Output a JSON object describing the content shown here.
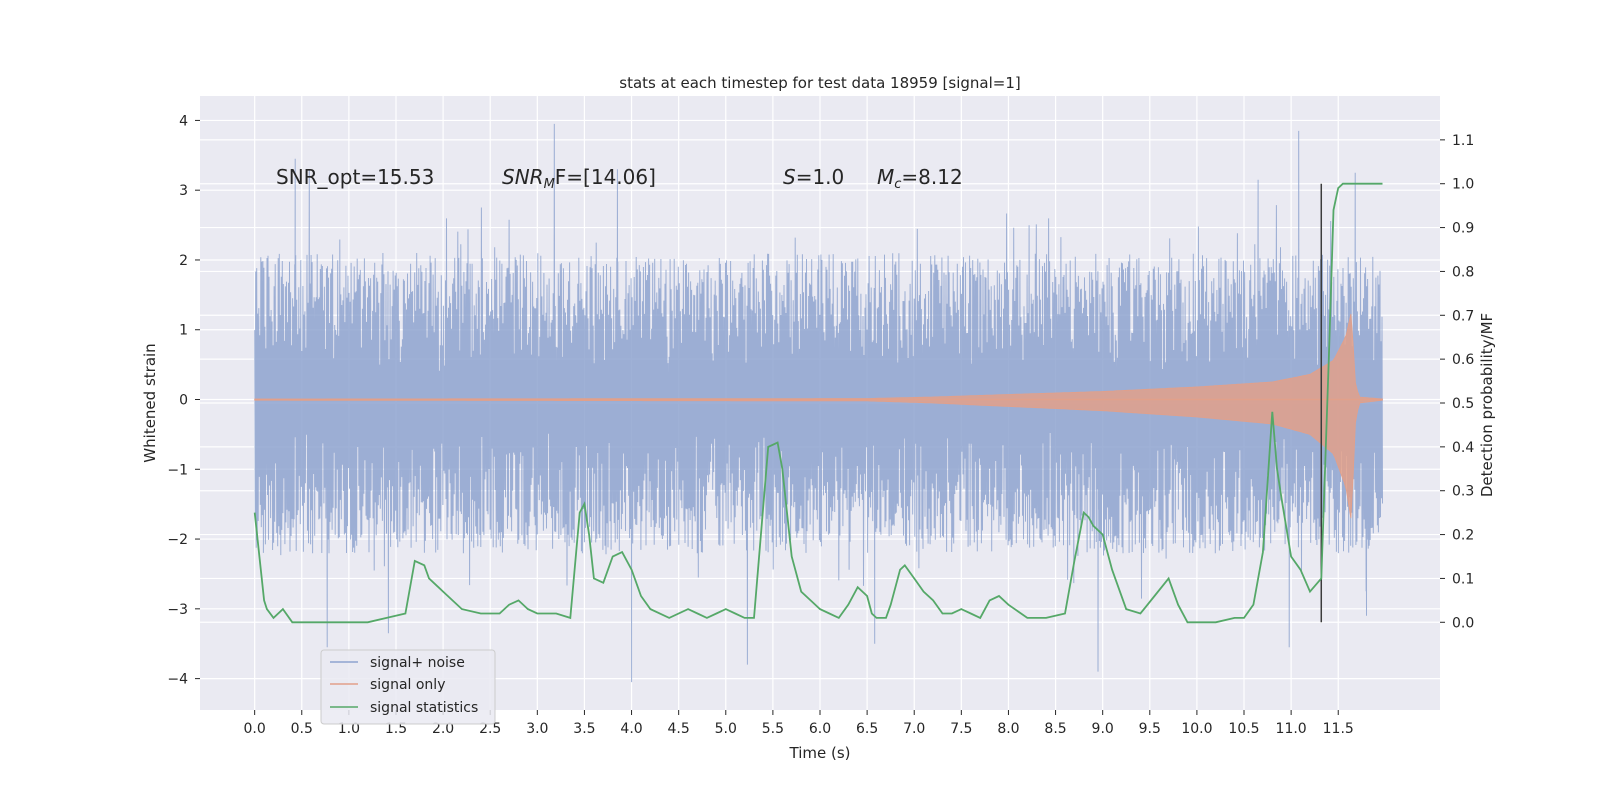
{
  "chart_data": {
    "type": "line",
    "title": "stats at each timestep for test data 18959 [signal=1]",
    "xlabel": "Time (s)",
    "ylabel": "Whitened strain",
    "ylabel_right": "Detection probability/MF",
    "xlim": [
      -0.58,
      12.58
    ],
    "ylim": [
      -4.45,
      4.35
    ],
    "ylim_right": [
      -0.2,
      1.2
    ],
    "x_ticks": [
      "0.0",
      "0.5",
      "1.0",
      "1.5",
      "2.0",
      "2.5",
      "3.0",
      "3.5",
      "4.0",
      "4.5",
      "5.0",
      "5.5",
      "6.0",
      "6.5",
      "7.0",
      "7.5",
      "8.0",
      "8.5",
      "9.0",
      "9.5",
      "10.0",
      "10.5",
      "11.0",
      "11.5"
    ],
    "y_ticks": [
      "4",
      "3",
      "2",
      "1",
      "0",
      "−1",
      "−2",
      "−3",
      "−4"
    ],
    "y_ticks_right": [
      "1.1",
      "1.0",
      "0.9",
      "0.8",
      "0.7",
      "0.6",
      "0.5",
      "0.4",
      "0.3",
      "0.2",
      "0.1",
      "0.0"
    ],
    "grid": true,
    "legend_position": "lower-left",
    "annotations": {
      "snr_opt": "SNR_opt=15.53",
      "snr_mf_prefix": "SNR",
      "snr_mf_sub": "M",
      "snr_mf_suffix": "F=[14.06]",
      "s_var": "S",
      "s_value": "=1.0",
      "mc_var": "M",
      "mc_sub": "c",
      "mc_value": "=8.12"
    },
    "marker_line_x": 11.32,
    "series": [
      {
        "name": "signal+ noise",
        "color": "#8ea3cf",
        "description": "whitened strain noise, approx. envelope",
        "t_range": [
          0.0,
          11.97
        ],
        "typical_max": 1.8,
        "typical_min": -1.6,
        "peaks": [
          {
            "t": 0.43,
            "y": 3.45
          },
          {
            "t": 0.58,
            "y": 3.3
          },
          {
            "t": 0.77,
            "y": -3.55
          },
          {
            "t": 1.42,
            "y": -3.35
          },
          {
            "t": 3.18,
            "y": 3.95
          },
          {
            "t": 3.85,
            "y": 3.3
          },
          {
            "t": 4.0,
            "y": -4.05
          },
          {
            "t": 5.23,
            "y": -3.8
          },
          {
            "t": 6.58,
            "y": -3.5
          },
          {
            "t": 8.95,
            "y": -3.9
          },
          {
            "t": 10.65,
            "y": 3.15
          },
          {
            "t": 10.98,
            "y": -3.55
          },
          {
            "t": 11.08,
            "y": 3.85
          },
          {
            "t": 11.68,
            "y": 3.25
          },
          {
            "t": 11.8,
            "y": -3.1
          }
        ]
      },
      {
        "name": "signal only",
        "color": "#e2a08a",
        "description": "chirp envelope amplitude vs time",
        "envelope": [
          {
            "t": 0.0,
            "a": 0.01
          },
          {
            "t": 6.5,
            "a": 0.02
          },
          {
            "t": 7.2,
            "a": 0.05
          },
          {
            "t": 8.0,
            "a": 0.1
          },
          {
            "t": 9.0,
            "a": 0.16
          },
          {
            "t": 10.0,
            "a": 0.25
          },
          {
            "t": 10.8,
            "a": 0.35
          },
          {
            "t": 11.2,
            "a": 0.5
          },
          {
            "t": 11.45,
            "a": 0.78
          },
          {
            "t": 11.58,
            "a": 1.25
          },
          {
            "t": 11.64,
            "a": 1.75
          },
          {
            "t": 11.68,
            "a": 0.35
          },
          {
            "t": 11.72,
            "a": 0.05
          },
          {
            "t": 11.97,
            "a": 0.01
          }
        ]
      },
      {
        "name": "signal statistics",
        "color": "#55a868",
        "axis": "right",
        "x": [
          0.0,
          0.1,
          0.13,
          0.2,
          0.3,
          0.4,
          0.5,
          0.6,
          0.8,
          1.0,
          1.2,
          1.4,
          1.6,
          1.7,
          1.8,
          1.85,
          1.9,
          1.95,
          2.0,
          2.1,
          2.2,
          2.4,
          2.6,
          2.7,
          2.8,
          2.9,
          3.0,
          3.2,
          3.35,
          3.45,
          3.5,
          3.55,
          3.6,
          3.7,
          3.8,
          3.9,
          4.0,
          4.1,
          4.2,
          4.4,
          4.6,
          4.7,
          4.8,
          4.9,
          5.0,
          5.1,
          5.2,
          5.3,
          5.45,
          5.55,
          5.6,
          5.7,
          5.8,
          5.9,
          6.0,
          6.1,
          6.2,
          6.3,
          6.4,
          6.5,
          6.55,
          6.6,
          6.7,
          6.75,
          6.85,
          6.9,
          7.0,
          7.1,
          7.2,
          7.3,
          7.4,
          7.5,
          7.6,
          7.7,
          7.8,
          7.9,
          8.0,
          8.2,
          8.4,
          8.6,
          8.7,
          8.8,
          8.85,
          8.9,
          9.0,
          9.1,
          9.25,
          9.4,
          9.55,
          9.7,
          9.8,
          9.9,
          10.0,
          10.2,
          10.4,
          10.5,
          10.6,
          10.7,
          10.8,
          10.85,
          10.9,
          11.0,
          11.1,
          11.2,
          11.32,
          11.4,
          11.45,
          11.5,
          11.55,
          11.6,
          11.7,
          11.97
        ],
        "y": [
          0.25,
          0.05,
          0.03,
          0.01,
          0.03,
          0.0,
          0.0,
          0.0,
          0.0,
          0.0,
          0.0,
          0.01,
          0.02,
          0.14,
          0.13,
          0.1,
          0.09,
          0.08,
          0.07,
          0.05,
          0.03,
          0.02,
          0.02,
          0.04,
          0.05,
          0.03,
          0.02,
          0.02,
          0.01,
          0.25,
          0.27,
          0.2,
          0.1,
          0.09,
          0.15,
          0.16,
          0.12,
          0.06,
          0.03,
          0.01,
          0.03,
          0.02,
          0.01,
          0.02,
          0.03,
          0.02,
          0.01,
          0.01,
          0.4,
          0.41,
          0.35,
          0.15,
          0.07,
          0.05,
          0.03,
          0.02,
          0.01,
          0.04,
          0.08,
          0.06,
          0.02,
          0.01,
          0.01,
          0.04,
          0.12,
          0.13,
          0.1,
          0.07,
          0.05,
          0.02,
          0.02,
          0.03,
          0.02,
          0.01,
          0.05,
          0.06,
          0.04,
          0.01,
          0.01,
          0.02,
          0.14,
          0.25,
          0.24,
          0.22,
          0.2,
          0.12,
          0.03,
          0.02,
          0.06,
          0.1,
          0.04,
          0.0,
          0.0,
          0.0,
          0.01,
          0.01,
          0.04,
          0.16,
          0.48,
          0.35,
          0.28,
          0.15,
          0.12,
          0.07,
          0.1,
          0.6,
          0.94,
          0.99,
          1.0,
          1.0,
          1.0,
          1.0
        ]
      }
    ]
  },
  "legend": {
    "items": [
      {
        "label": "signal+ noise",
        "color": "#8ea3cf"
      },
      {
        "label": "signal only",
        "color": "#e2a08a"
      },
      {
        "label": "signal statistics",
        "color": "#55a868"
      }
    ]
  },
  "colors": {
    "plot_background": "#eaeaf2",
    "grid": "#ffffff",
    "marker_line": "#3c3c3c"
  }
}
